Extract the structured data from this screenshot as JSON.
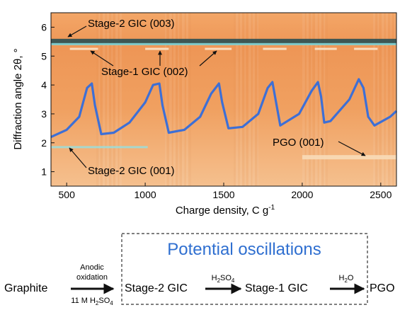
{
  "figure": {
    "y_axis_label": "Diffraction angle 2θ, °",
    "x_axis_label": "Charge density, C g",
    "x_axis_unit_exp": "-1",
    "annotations": {
      "stage2_003": "Stage-2 GIC (003)",
      "stage1_002": "Stage-1 GIC (002)",
      "stage2_001": "Stage-2 GIC (001)",
      "pgo_001": "PGO (001)"
    },
    "colors": {
      "heatmap_base": "#f09a5a",
      "heatmap_light": "#f7c89a",
      "curve": "#3d6fd6",
      "band_dark": "#1f4a52",
      "band_cyan": "#7fd4d6"
    }
  },
  "chart_data": {
    "type": "heatmap",
    "xlim": [
      400,
      2600
    ],
    "ylim": [
      0.5,
      6.5
    ],
    "x_ticks": [
      500,
      1000,
      1500,
      2000,
      2500
    ],
    "y_ticks": [
      1,
      2,
      3,
      4,
      5,
      6
    ],
    "bands": [
      {
        "name": "Stage-2 GIC (003)",
        "y": 5.5
      },
      {
        "name": "Stage-2 GIC (001)",
        "y": 1.85
      },
      {
        "name": "PGO (001)",
        "y": 1.5
      }
    ],
    "potential_curve": {
      "x": [
        400,
        500,
        580,
        630,
        660,
        680,
        720,
        800,
        900,
        1000,
        1050,
        1090,
        1110,
        1150,
        1250,
        1350,
        1420,
        1470,
        1490,
        1530,
        1620,
        1720,
        1780,
        1810,
        1830,
        1860,
        1980,
        2060,
        2100,
        2120,
        2140,
        2180,
        2300,
        2360,
        2390,
        2420,
        2460,
        2560,
        2600
      ],
      "y": [
        2.2,
        2.45,
        2.9,
        3.9,
        4.05,
        3.3,
        2.3,
        2.35,
        2.7,
        3.4,
        4.0,
        4.05,
        3.3,
        2.35,
        2.45,
        2.9,
        3.7,
        4.05,
        3.4,
        2.5,
        2.55,
        3.0,
        3.9,
        4.1,
        3.5,
        2.6,
        3.0,
        3.8,
        4.1,
        3.6,
        2.7,
        2.75,
        3.5,
        4.2,
        3.9,
        2.9,
        2.6,
        2.9,
        3.1
      ]
    }
  },
  "scheme": {
    "box_title": "Potential oscillations",
    "graphite": "Graphite",
    "arrow1_top": [
      "Anodic",
      "oxidation"
    ],
    "arrow1_bottom": "11 M H",
    "arrow1_bottom_sub": "2",
    "arrow1_bottom_tail": "SO",
    "arrow1_bottom_sub2": "4",
    "stage2": "Stage-2 GIC",
    "arrow2_top": "H",
    "arrow2_top_sub": "2",
    "arrow2_top_tail": "SO",
    "arrow2_top_sub2": "4",
    "stage1": "Stage-1 GIC",
    "arrow3_top": "H",
    "arrow3_top_sub": "2",
    "arrow3_top_tail": "O",
    "pgo": "PGO",
    "colors": {
      "title": "#2f6fd0",
      "text": "#111111",
      "dash": "#333333"
    }
  }
}
